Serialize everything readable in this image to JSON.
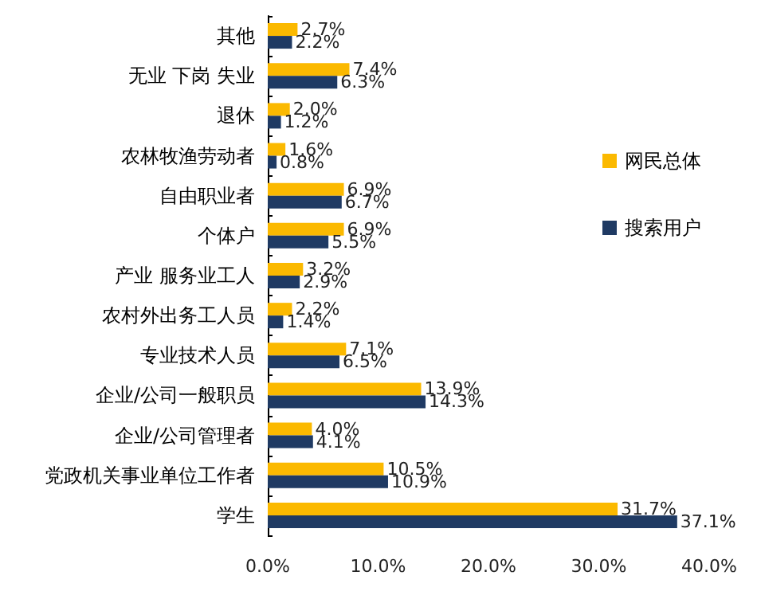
{
  "chart_data": {
    "type": "bar",
    "orientation": "horizontal",
    "categories": [
      "其他",
      "无业 下岗 失业",
      "退休",
      "农林牧渔劳动者",
      "自由职业者",
      "个体户",
      "产业 服务业工人",
      "农村外出务工人员",
      "专业技术人员",
      "企业/公司一般职员",
      "企业/公司管理者",
      "党政机关事业单位工作者",
      "学生"
    ],
    "series": [
      {
        "name": "网民总体",
        "color": "#fbb900",
        "values": [
          2.7,
          7.4,
          2.0,
          1.6,
          6.9,
          6.9,
          3.2,
          2.2,
          7.1,
          13.9,
          4.0,
          10.5,
          31.7
        ],
        "value_labels": [
          "2.7%",
          "7.4%",
          "2.0%",
          "1.6%",
          "6.9%",
          "6.9%",
          "3.2%",
          "2.2%",
          "7.1%",
          "13.9%",
          "4.0%",
          "10.5%",
          "31.7%"
        ]
      },
      {
        "name": "搜索用户",
        "color": "#1f3a63",
        "values": [
          2.2,
          6.3,
          1.2,
          0.8,
          6.7,
          5.5,
          2.9,
          1.4,
          6.5,
          14.3,
          4.1,
          10.9,
          37.1
        ],
        "value_labels": [
          "2.2%",
          "6.3%",
          "1.2%",
          "0.8%",
          "6.7%",
          "5.5%",
          "2.9%",
          "1.4%",
          "6.5%",
          "14.3%",
          "4.1%",
          "10.9%",
          "37.1%"
        ]
      }
    ],
    "xlim": [
      0,
      40
    ],
    "xticks": [
      {
        "value": 0,
        "label": "0.0%"
      },
      {
        "value": 10,
        "label": "10.0%"
      },
      {
        "value": 20,
        "label": "20.0%"
      },
      {
        "value": 30,
        "label": "30.0%"
      },
      {
        "value": 40,
        "label": "40.0%"
      }
    ],
    "grid": false,
    "legend": "right"
  }
}
